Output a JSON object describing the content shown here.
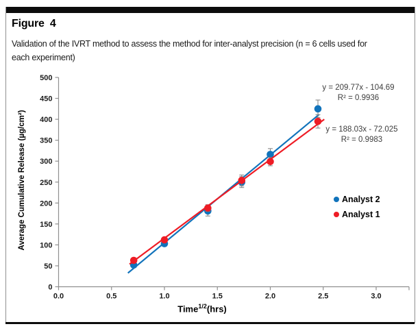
{
  "figure": {
    "title": "Figure 4",
    "caption_lines": [
      "Validation of the IVRT method to assess the method for inter-analyst precision (n = 6 cells used for",
      "each experiment)"
    ]
  },
  "chart_data": {
    "type": "scatter",
    "x": [
      0.71,
      1.0,
      1.41,
      1.73,
      2.0,
      2.45
    ],
    "series": [
      {
        "name": "Analyst 2",
        "color": "#1173bb",
        "values": [
          52,
          103,
          181,
          250,
          316,
          425
        ],
        "errors": [
          6,
          6,
          12,
          13,
          14,
          21
        ],
        "trend": {
          "slope": 209.77,
          "intercept": -104.69,
          "x_start": 0.655,
          "x_end": 2.46
        },
        "equation": "y = 209.77x - 104.69",
        "r_squared": "R² = 0.9936"
      },
      {
        "name": "Analyst 1",
        "color": "#ee1c25",
        "values": [
          63,
          112,
          188,
          254,
          299,
          395
        ],
        "errors": [
          5,
          5,
          8,
          13,
          10,
          16
        ],
        "trend": {
          "slope": 188.03,
          "intercept": -72.025,
          "x_start": 0.67,
          "x_end": 2.51
        },
        "equation": "y = 188.03x - 72.025",
        "r_squared": "R² = 0.9983"
      }
    ],
    "xlabel": {
      "main": "Time",
      "sup": "1/2",
      "rest": "(hrs)"
    },
    "ylabel": "Average Cumulative Release (µg/cm²)",
    "xlim": [
      0,
      3.0
    ],
    "xtick_step": 0.5,
    "ylim": [
      0,
      500
    ],
    "ytick_step": 50,
    "grid": false,
    "legend_position": "right",
    "axis_color": "#8f8f8f",
    "error_bar_color": "#7f7f7f"
  }
}
